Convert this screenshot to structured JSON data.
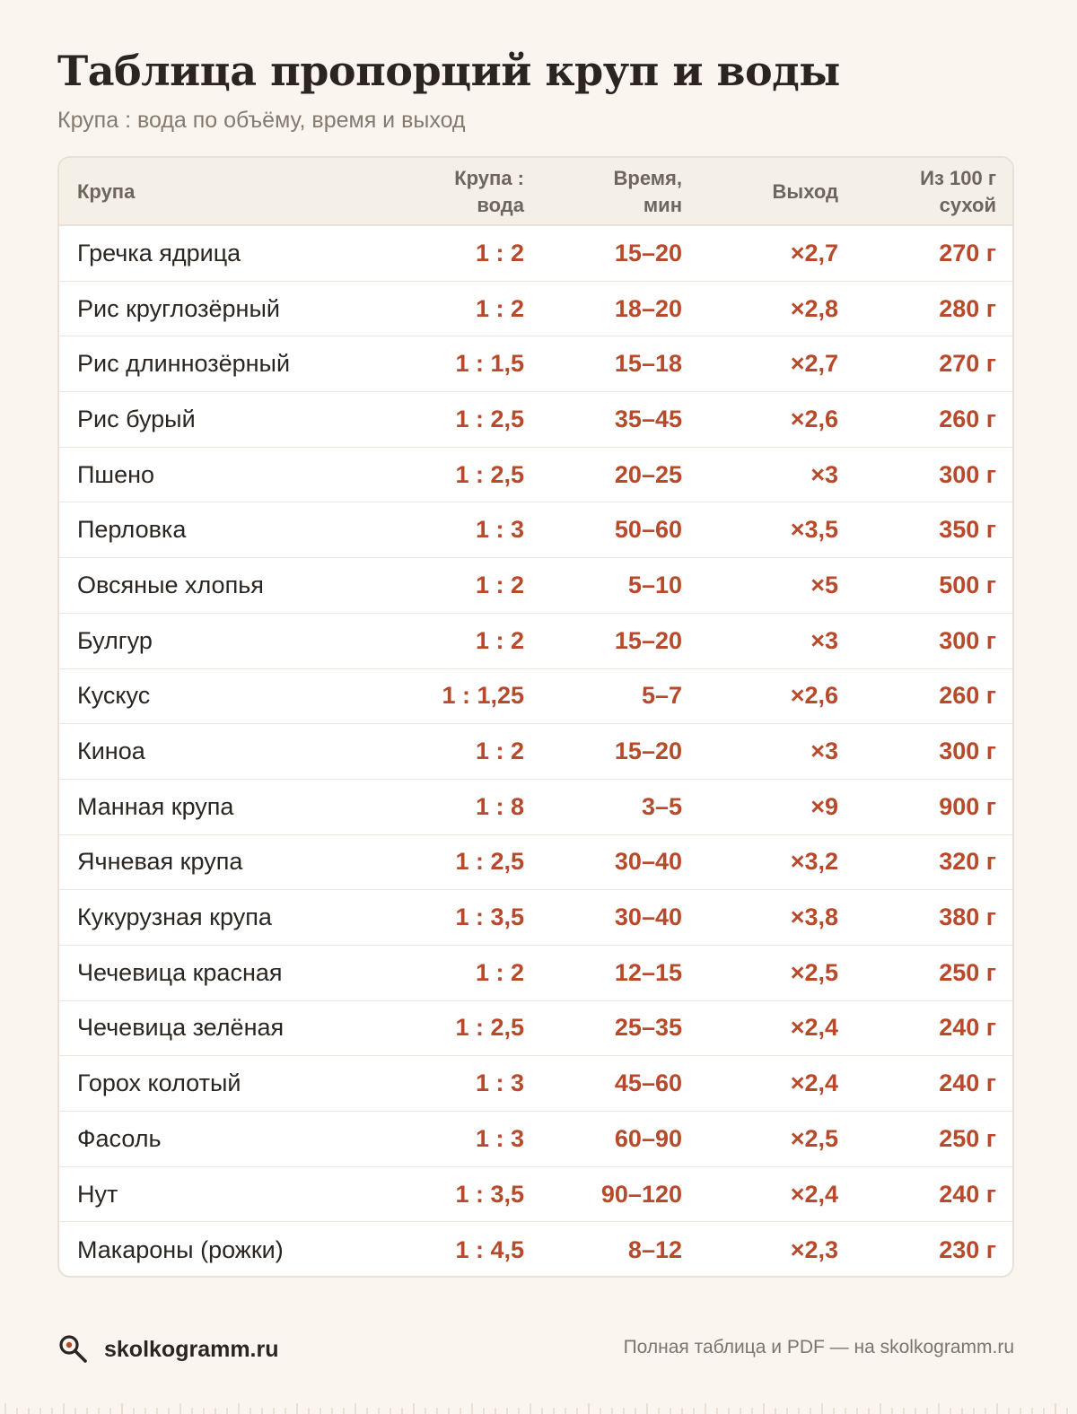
{
  "title": "Таблица пропорций круп и воды",
  "subtitle": "Крупа : вода по объёму, время и выход",
  "table": {
    "headers": {
      "name": "Крупа",
      "ratio_line1": "Крупа :",
      "ratio_line2": "вода",
      "time_line1": "Время,",
      "time_line2": "мин",
      "yield": "Выход",
      "per100_line1": "Из 100 г",
      "per100_line2": "сухой"
    },
    "rows": [
      {
        "name": "Гречка ядрица",
        "ratio": "1 : 2",
        "time": "15–20",
        "yield": "×2,7",
        "per100": "270 г"
      },
      {
        "name": "Рис круглозёрный",
        "ratio": "1 : 2",
        "time": "18–20",
        "yield": "×2,8",
        "per100": "280 г"
      },
      {
        "name": "Рис длиннозёрный",
        "ratio": "1 : 1,5",
        "time": "15–18",
        "yield": "×2,7",
        "per100": "270 г"
      },
      {
        "name": "Рис бурый",
        "ratio": "1 : 2,5",
        "time": "35–45",
        "yield": "×2,6",
        "per100": "260 г"
      },
      {
        "name": "Пшено",
        "ratio": "1 : 2,5",
        "time": "20–25",
        "yield": "×3",
        "per100": "300 г"
      },
      {
        "name": "Перловка",
        "ratio": "1 : 3",
        "time": "50–60",
        "yield": "×3,5",
        "per100": "350 г"
      },
      {
        "name": "Овсяные хлопья",
        "ratio": "1 : 2",
        "time": "5–10",
        "yield": "×5",
        "per100": "500 г"
      },
      {
        "name": "Булгур",
        "ratio": "1 : 2",
        "time": "15–20",
        "yield": "×3",
        "per100": "300 г"
      },
      {
        "name": "Кускус",
        "ratio": "1 : 1,25",
        "time": "5–7",
        "yield": "×2,6",
        "per100": "260 г"
      },
      {
        "name": "Киноа",
        "ratio": "1 : 2",
        "time": "15–20",
        "yield": "×3",
        "per100": "300 г"
      },
      {
        "name": "Манная крупа",
        "ratio": "1 : 8",
        "time": "3–5",
        "yield": "×9",
        "per100": "900 г"
      },
      {
        "name": "Ячневая крупа",
        "ratio": "1 : 2,5",
        "time": "30–40",
        "yield": "×3,2",
        "per100": "320 г"
      },
      {
        "name": "Кукурузная крупа",
        "ratio": "1 : 3,5",
        "time": "30–40",
        "yield": "×3,8",
        "per100": "380 г"
      },
      {
        "name": "Чечевица красная",
        "ratio": "1 : 2",
        "time": "12–15",
        "yield": "×2,5",
        "per100": "250 г"
      },
      {
        "name": "Чечевица зелёная",
        "ratio": "1 : 2,5",
        "time": "25–35",
        "yield": "×2,4",
        "per100": "240 г"
      },
      {
        "name": "Горох колотый",
        "ratio": "1 : 3",
        "time": "45–60",
        "yield": "×2,4",
        "per100": "240 г"
      },
      {
        "name": "Фасоль",
        "ratio": "1 : 3",
        "time": "60–90",
        "yield": "×2,5",
        "per100": "250 г"
      },
      {
        "name": "Нут",
        "ratio": "1 : 3,5",
        "time": "90–120",
        "yield": "×2,4",
        "per100": "240 г"
      },
      {
        "name": "Макароны (рожки)",
        "ratio": "1 : 4,5",
        "time": "8–12",
        "yield": "×2,3",
        "per100": "230 г"
      }
    ]
  },
  "footer": {
    "site": "skolkogramm.ru",
    "logo_icon": "magnifier-icon",
    "note": "Полная таблица и PDF — на skolkogramm.ru"
  },
  "colors": {
    "background": "#faf6ef",
    "accent": "#b84a2c",
    "header_bg": "#f4efe7"
  }
}
